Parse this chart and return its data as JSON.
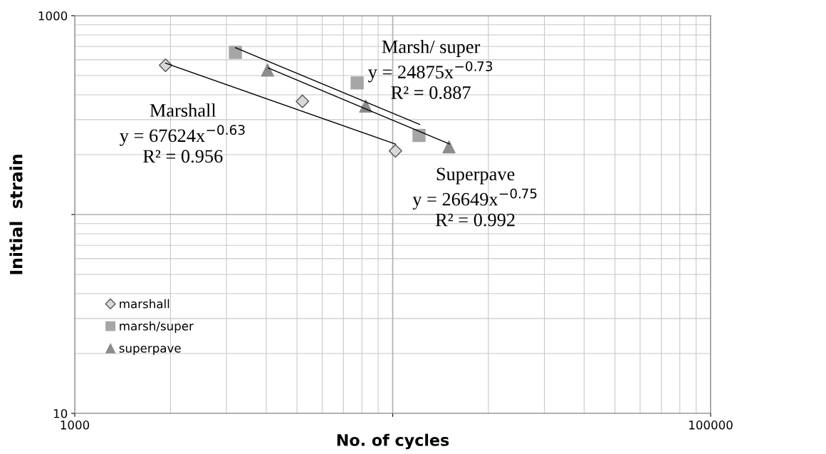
{
  "chart_data": {
    "type": "scatter",
    "xlabel": "No. of cycles",
    "ylabel": "Initial  strain",
    "log": "xy",
    "xlim": [
      1000,
      100000
    ],
    "xticks": [
      1000,
      {
        "value": 10000,
        "label": null
      },
      100000
    ],
    "ylim": [
      10,
      1000
    ],
    "yticks": [
      10,
      {
        "value": 100,
        "label": null
      },
      1000
    ],
    "grid": true,
    "legend": "lower left",
    "series": [
      {
        "name": "marshall",
        "color": "#d9d9d9",
        "marker": "diamond",
        "x": [
          1930,
          5200,
          10200
        ],
        "values": [
          563,
          371,
          209
        ]
      },
      {
        "name": "marsh/super",
        "color": "#a6a6a6",
        "marker": "square",
        "x": [
          3200,
          7730,
          12100
        ],
        "values": [
          654,
          459,
          250
        ]
      },
      {
        "name": "superpave",
        "color": "#8c8c8c",
        "marker": "triangle",
        "x": [
          4040,
          8225,
          15030
        ],
        "values": [
          533,
          351,
          219
        ]
      },
      {
        "type": "line",
        "color": "#000000",
        "x": [
          1930,
          10200
        ],
        "values": [
          577,
          226
        ]
      },
      {
        "type": "line",
        "color": "#000000",
        "x": [
          3200,
          12160
        ],
        "values": [
          691,
          284
        ]
      },
      {
        "type": "line",
        "color": "#000000",
        "x": [
          4060,
          15100
        ],
        "values": [
          546,
          226
        ]
      }
    ],
    "annotations": [
      "Marshall\ny = 67624x$^{−0.63}$\nR² = 0.956",
      "Marsh/ super\ny = 24875x$^{−0.73}$\nR² = 0.887",
      "Superpave\ny = 26649x$^{−0.75}$\nR² = 0.992"
    ]
  }
}
